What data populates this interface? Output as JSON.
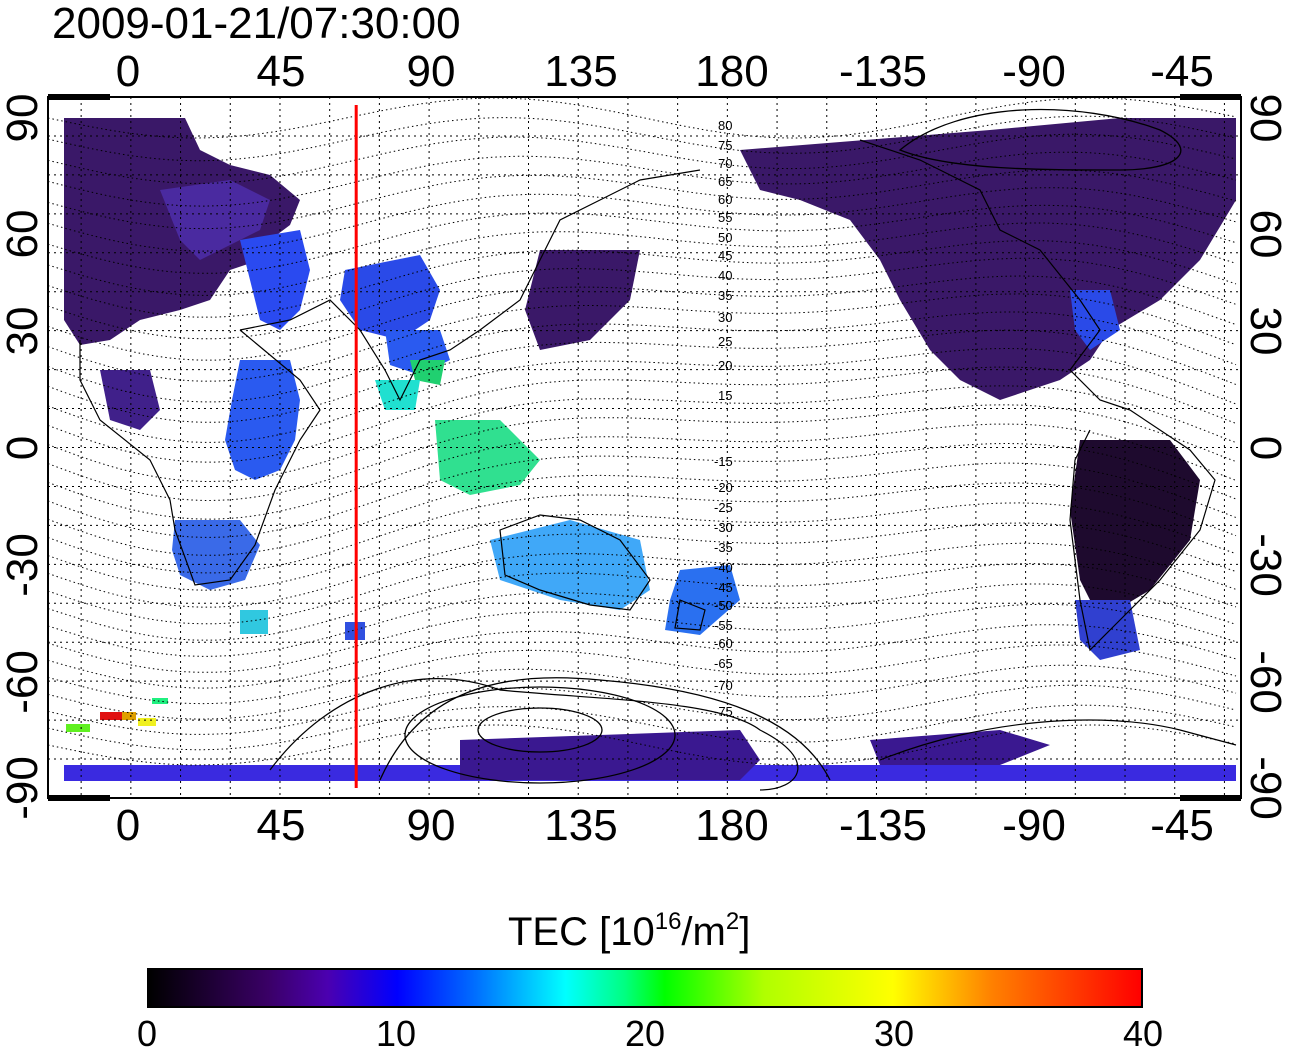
{
  "title": "2009-01-21/07:30:00",
  "top_ticks": [
    "0",
    "45",
    "90",
    "135",
    "180",
    "-135",
    "-90",
    "-45"
  ],
  "bottom_ticks": [
    "0",
    "45",
    "90",
    "135",
    "180",
    "-135",
    "-90",
    "-45"
  ],
  "left_ticks": [
    "90",
    "60",
    "30",
    "0",
    "-30",
    "-60",
    "-90"
  ],
  "right_ticks": [
    "90",
    "60",
    "30",
    "0",
    "-30",
    "-60",
    "-90"
  ],
  "contour_labels": [
    "80",
    "75",
    "70",
    "65",
    "60",
    "55",
    "50",
    "45",
    "40",
    "35",
    "30",
    "25",
    "20",
    "15",
    "-15",
    "-20",
    "-25",
    "-30",
    "-35",
    "-40",
    "-45",
    "-50",
    "-55",
    "-60",
    "-65",
    "-70",
    "-75"
  ],
  "colorbar": {
    "label_main": "TEC  [10",
    "label_sup1": "16",
    "label_mid": "/m",
    "label_sup2": "2",
    "label_end": "]",
    "ticks": [
      "0",
      "10",
      "20",
      "30",
      "40"
    ],
    "range": [
      0,
      40
    ]
  },
  "map": {
    "projection": "equirectangular",
    "lon_range": [
      -25,
      335
    ],
    "lat_range": [
      -90,
      90
    ],
    "marker_line_lon": 68,
    "marker_line_color": "#ff0000"
  }
}
